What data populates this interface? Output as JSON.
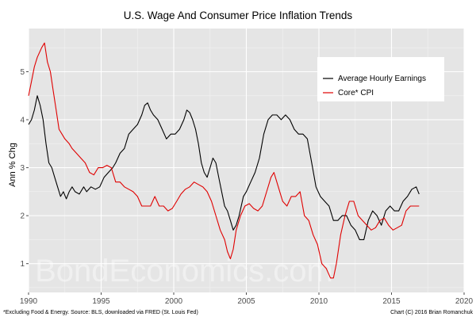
{
  "chart_data": {
    "type": "line",
    "title": "U.S. Wage And Consumer Price Inflation Trends",
    "xlabel": "",
    "ylabel": "Ann % Chg",
    "xlim": [
      1990,
      2020
    ],
    "ylim": [
      0.4,
      5.9
    ],
    "x_ticks": [
      1990,
      1995,
      2000,
      2005,
      2010,
      2015,
      2020
    ],
    "y_ticks": [
      1,
      2,
      3,
      4,
      5
    ],
    "grid": true,
    "legend_position": "top-right",
    "colors": {
      "panel": "#e5e5e5",
      "grid_major": "#ffffff",
      "grid_minor": "#f2f2f2"
    },
    "series": [
      {
        "name": "Average Hourly Earnings",
        "color": "#000000",
        "points": [
          [
            1990.0,
            3.9
          ],
          [
            1990.2,
            4.0
          ],
          [
            1990.4,
            4.2
          ],
          [
            1990.6,
            4.5
          ],
          [
            1990.8,
            4.3
          ],
          [
            1991.0,
            4.0
          ],
          [
            1991.2,
            3.5
          ],
          [
            1991.4,
            3.1
          ],
          [
            1991.6,
            3.0
          ],
          [
            1991.8,
            2.8
          ],
          [
            1992.0,
            2.6
          ],
          [
            1992.2,
            2.4
          ],
          [
            1992.4,
            2.5
          ],
          [
            1992.6,
            2.35
          ],
          [
            1992.8,
            2.5
          ],
          [
            1993.0,
            2.6
          ],
          [
            1993.2,
            2.5
          ],
          [
            1993.5,
            2.45
          ],
          [
            1993.8,
            2.6
          ],
          [
            1994.0,
            2.5
          ],
          [
            1994.3,
            2.6
          ],
          [
            1994.6,
            2.55
          ],
          [
            1994.9,
            2.6
          ],
          [
            1995.2,
            2.8
          ],
          [
            1995.5,
            2.9
          ],
          [
            1995.8,
            3.0
          ],
          [
            1996.0,
            3.1
          ],
          [
            1996.3,
            3.3
          ],
          [
            1996.6,
            3.4
          ],
          [
            1996.9,
            3.7
          ],
          [
            1997.2,
            3.8
          ],
          [
            1997.5,
            3.9
          ],
          [
            1997.8,
            4.1
          ],
          [
            1998.0,
            4.3
          ],
          [
            1998.2,
            4.35
          ],
          [
            1998.4,
            4.2
          ],
          [
            1998.6,
            4.1
          ],
          [
            1998.9,
            4.0
          ],
          [
            1999.2,
            3.8
          ],
          [
            1999.5,
            3.6
          ],
          [
            1999.8,
            3.7
          ],
          [
            2000.1,
            3.7
          ],
          [
            2000.4,
            3.8
          ],
          [
            2000.7,
            4.0
          ],
          [
            2000.9,
            4.2
          ],
          [
            2001.1,
            4.15
          ],
          [
            2001.3,
            4.0
          ],
          [
            2001.5,
            3.8
          ],
          [
            2001.7,
            3.5
          ],
          [
            2001.9,
            3.1
          ],
          [
            2002.1,
            2.9
          ],
          [
            2002.3,
            2.8
          ],
          [
            2002.5,
            3.0
          ],
          [
            2002.7,
            3.2
          ],
          [
            2002.9,
            3.1
          ],
          [
            2003.1,
            2.8
          ],
          [
            2003.3,
            2.5
          ],
          [
            2003.5,
            2.2
          ],
          [
            2003.7,
            2.1
          ],
          [
            2003.9,
            1.9
          ],
          [
            2004.1,
            1.7
          ],
          [
            2004.3,
            1.8
          ],
          [
            2004.5,
            2.0
          ],
          [
            2004.8,
            2.4
          ],
          [
            2005.0,
            2.5
          ],
          [
            2005.3,
            2.7
          ],
          [
            2005.6,
            2.9
          ],
          [
            2005.9,
            3.2
          ],
          [
            2006.2,
            3.7
          ],
          [
            2006.5,
            4.0
          ],
          [
            2006.8,
            4.1
          ],
          [
            2007.1,
            4.1
          ],
          [
            2007.4,
            4.0
          ],
          [
            2007.7,
            4.1
          ],
          [
            2008.0,
            4.0
          ],
          [
            2008.3,
            3.8
          ],
          [
            2008.6,
            3.7
          ],
          [
            2008.9,
            3.7
          ],
          [
            2009.2,
            3.6
          ],
          [
            2009.5,
            3.1
          ],
          [
            2009.8,
            2.6
          ],
          [
            2010.1,
            2.4
          ],
          [
            2010.4,
            2.3
          ],
          [
            2010.7,
            2.2
          ],
          [
            2011.0,
            1.9
          ],
          [
            2011.3,
            1.9
          ],
          [
            2011.6,
            2.0
          ],
          [
            2011.9,
            2.0
          ],
          [
            2012.2,
            1.8
          ],
          [
            2012.5,
            1.7
          ],
          [
            2012.8,
            1.5
          ],
          [
            2013.1,
            1.5
          ],
          [
            2013.4,
            1.9
          ],
          [
            2013.7,
            2.1
          ],
          [
            2014.0,
            2.0
          ],
          [
            2014.3,
            1.8
          ],
          [
            2014.6,
            2.1
          ],
          [
            2014.9,
            2.2
          ],
          [
            2015.2,
            2.1
          ],
          [
            2015.5,
            2.1
          ],
          [
            2015.8,
            2.3
          ],
          [
            2016.1,
            2.4
          ],
          [
            2016.4,
            2.55
          ],
          [
            2016.7,
            2.6
          ],
          [
            2016.9,
            2.45
          ]
        ]
      },
      {
        "name": "Core* CPI",
        "color": "#e00000",
        "points": [
          [
            1990.0,
            4.5
          ],
          [
            1990.2,
            4.8
          ],
          [
            1990.4,
            5.1
          ],
          [
            1990.6,
            5.3
          ],
          [
            1990.9,
            5.5
          ],
          [
            1991.1,
            5.6
          ],
          [
            1991.3,
            5.2
          ],
          [
            1991.5,
            5.0
          ],
          [
            1991.7,
            4.6
          ],
          [
            1991.9,
            4.2
          ],
          [
            1992.1,
            3.8
          ],
          [
            1992.3,
            3.7
          ],
          [
            1992.5,
            3.6
          ],
          [
            1992.8,
            3.5
          ],
          [
            1993.0,
            3.4
          ],
          [
            1993.3,
            3.3
          ],
          [
            1993.6,
            3.2
          ],
          [
            1993.9,
            3.1
          ],
          [
            1994.2,
            2.9
          ],
          [
            1994.5,
            2.85
          ],
          [
            1994.8,
            3.0
          ],
          [
            1995.1,
            3.0
          ],
          [
            1995.4,
            3.05
          ],
          [
            1995.7,
            3.0
          ],
          [
            1996.0,
            2.7
          ],
          [
            1996.3,
            2.7
          ],
          [
            1996.6,
            2.6
          ],
          [
            1996.9,
            2.55
          ],
          [
            1997.2,
            2.5
          ],
          [
            1997.5,
            2.4
          ],
          [
            1997.8,
            2.2
          ],
          [
            1998.1,
            2.2
          ],
          [
            1998.4,
            2.2
          ],
          [
            1998.7,
            2.4
          ],
          [
            1999.0,
            2.2
          ],
          [
            1999.3,
            2.2
          ],
          [
            1999.6,
            2.1
          ],
          [
            1999.9,
            2.15
          ],
          [
            2000.2,
            2.3
          ],
          [
            2000.5,
            2.45
          ],
          [
            2000.8,
            2.55
          ],
          [
            2001.1,
            2.6
          ],
          [
            2001.4,
            2.7
          ],
          [
            2001.7,
            2.65
          ],
          [
            2002.0,
            2.6
          ],
          [
            2002.3,
            2.5
          ],
          [
            2002.6,
            2.3
          ],
          [
            2002.9,
            2.0
          ],
          [
            2003.2,
            1.7
          ],
          [
            2003.5,
            1.5
          ],
          [
            2003.7,
            1.25
          ],
          [
            2003.9,
            1.1
          ],
          [
            2004.1,
            1.3
          ],
          [
            2004.3,
            1.7
          ],
          [
            2004.6,
            2.0
          ],
          [
            2004.9,
            2.2
          ],
          [
            2005.2,
            2.25
          ],
          [
            2005.5,
            2.15
          ],
          [
            2005.8,
            2.1
          ],
          [
            2006.1,
            2.2
          ],
          [
            2006.4,
            2.5
          ],
          [
            2006.7,
            2.8
          ],
          [
            2006.9,
            2.9
          ],
          [
            2007.2,
            2.6
          ],
          [
            2007.5,
            2.3
          ],
          [
            2007.8,
            2.2
          ],
          [
            2008.1,
            2.4
          ],
          [
            2008.4,
            2.4
          ],
          [
            2008.7,
            2.5
          ],
          [
            2009.0,
            2.0
          ],
          [
            2009.3,
            1.9
          ],
          [
            2009.6,
            1.6
          ],
          [
            2009.9,
            1.4
          ],
          [
            2010.2,
            1.0
          ],
          [
            2010.5,
            0.9
          ],
          [
            2010.8,
            0.7
          ],
          [
            2011.0,
            0.7
          ],
          [
            2011.2,
            1.0
          ],
          [
            2011.5,
            1.6
          ],
          [
            2011.8,
            2.0
          ],
          [
            2012.1,
            2.3
          ],
          [
            2012.4,
            2.3
          ],
          [
            2012.7,
            2.0
          ],
          [
            2013.0,
            1.9
          ],
          [
            2013.3,
            1.8
          ],
          [
            2013.6,
            1.7
          ],
          [
            2013.9,
            1.75
          ],
          [
            2014.2,
            1.9
          ],
          [
            2014.5,
            1.95
          ],
          [
            2014.8,
            1.8
          ],
          [
            2015.1,
            1.7
          ],
          [
            2015.4,
            1.75
          ],
          [
            2015.7,
            1.8
          ],
          [
            2016.0,
            2.1
          ],
          [
            2016.3,
            2.2
          ],
          [
            2016.6,
            2.2
          ],
          [
            2016.9,
            2.2
          ]
        ]
      }
    ],
    "annotations": [
      "BondEconomics.com"
    ],
    "footnote_left": "*Excluding Food & Energy. Source: BLS, downloaded via FRED (St. Louis Fed)",
    "footnote_right": "Chart (C) 2016 Brian Romanchuk"
  }
}
